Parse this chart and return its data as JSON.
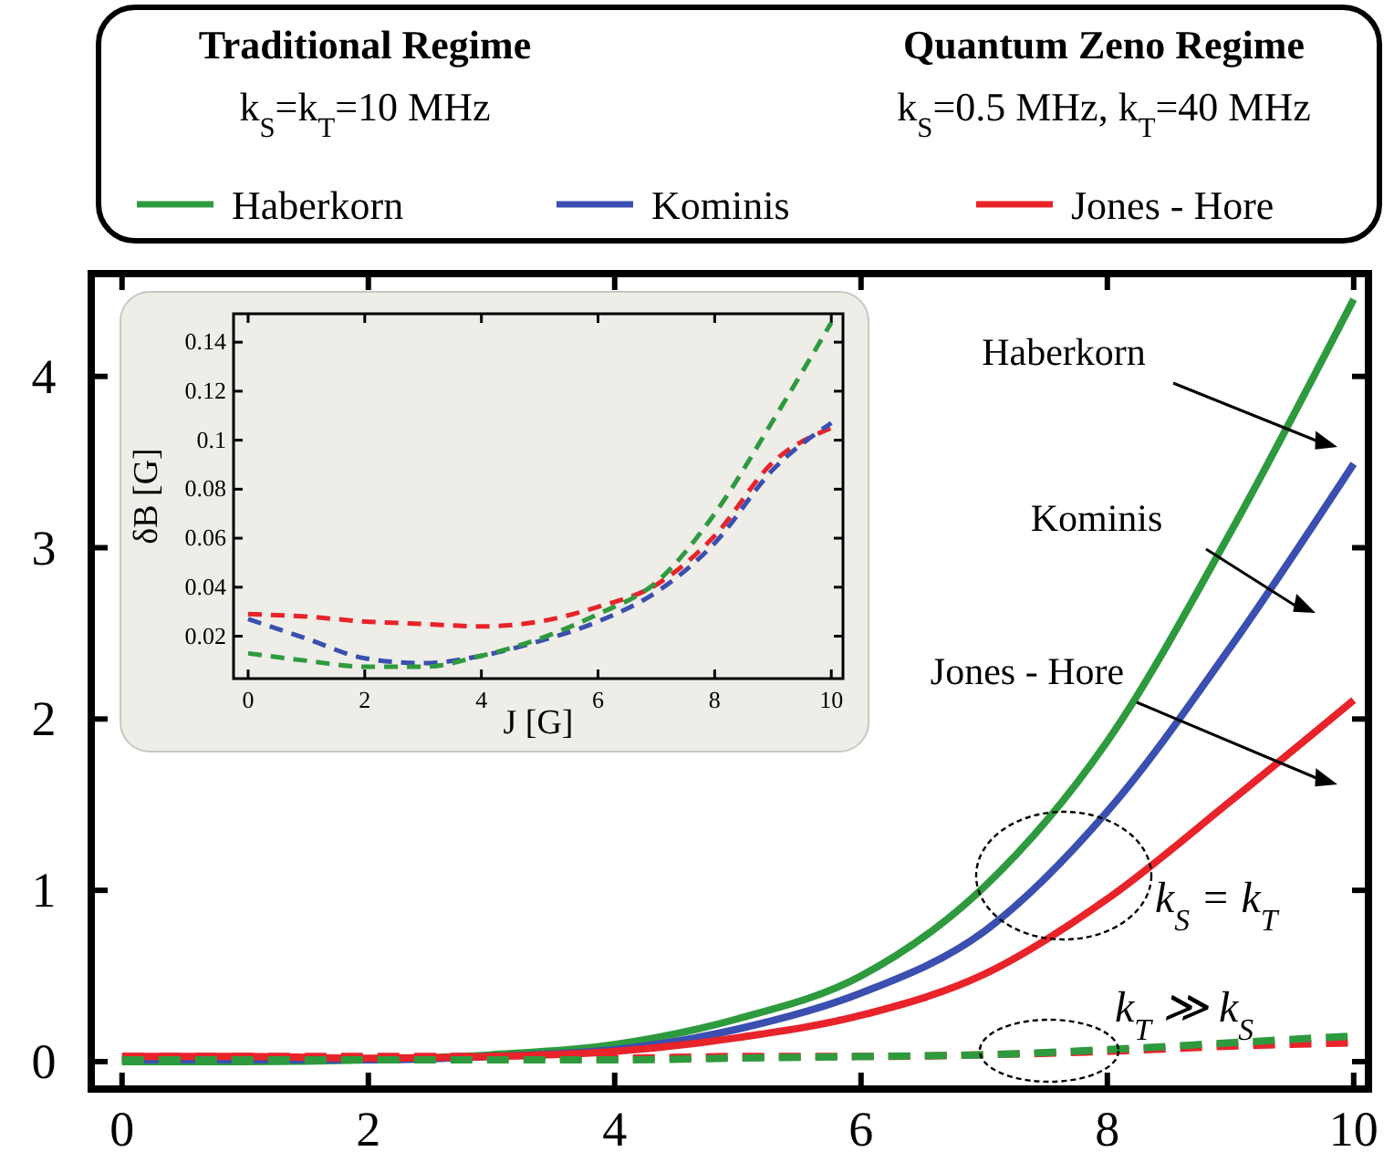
{
  "chart_data": [
    {
      "type": "line",
      "x": [
        0,
        1,
        2,
        3,
        4,
        5,
        6,
        7,
        8,
        9,
        10
      ],
      "xlim": [
        -0.25,
        10.12
      ],
      "ylim": [
        -0.16,
        4.6
      ],
      "xticks": [
        0,
        2,
        4,
        6,
        8,
        10
      ],
      "yticks": [
        0,
        1,
        2,
        3,
        4
      ],
      "legend": "top",
      "series": [
        {
          "name": "Haberkorn",
          "color": "#2e9a3e",
          "line_style": "solid",
          "values": [
            0,
            0,
            0.01,
            0.04,
            0.1,
            0.25,
            0.5,
            1.02,
            1.87,
            3.09,
            4.45
          ]
        },
        {
          "name": "Kominis",
          "color": "#3a4fb0",
          "line_style": "solid",
          "values": [
            0.01,
            0.01,
            0.01,
            0.03,
            0.07,
            0.19,
            0.4,
            0.76,
            1.46,
            2.42,
            3.49
          ]
        },
        {
          "name": "Jones - Hore",
          "color": "#e8232a",
          "line_style": "solid",
          "values": [
            0.03,
            0.03,
            0.02,
            0.03,
            0.06,
            0.14,
            0.27,
            0.51,
            0.95,
            1.52,
            2.11
          ]
        },
        {
          "color": "#e8232a",
          "line_style": "dashed",
          "values": [
            0.03,
            0.03,
            0.03,
            0.03,
            0.02,
            0.03,
            0.03,
            0.04,
            0.06,
            0.09,
            0.11
          ]
        },
        {
          "color": "#2e9a3e",
          "line_style": "dashed",
          "values": [
            0.01,
            0.01,
            0.01,
            0.01,
            0.01,
            0.02,
            0.03,
            0.04,
            0.07,
            0.11,
            0.15
          ]
        }
      ],
      "annotations": [
        "Traditional Regime",
        "k$_{S}$=k$_{T}$=10 MHz",
        "Quantum Zeno Regime",
        "k$_{S}$=0.5 MHz, k$_{T}$=40 MHz",
        "Haberkorn",
        "Kominis",
        "Jones - Hore",
        "k$_{S}$ = k$_{T}$",
        "k$_{T}$ ≫ k$_{S}$"
      ]
    },
    {
      "type": "line",
      "x": [
        0,
        1,
        2,
        3,
        4,
        5,
        6,
        7,
        8,
        9,
        10
      ],
      "xlim": [
        -0.25,
        10.2
      ],
      "ylim": [
        0.0027,
        0.1516
      ],
      "xticks": [
        0,
        2,
        4,
        6,
        8,
        10
      ],
      "yticks": [
        0.02,
        0.04,
        0.06,
        0.08,
        0.1,
        0.12,
        0.14
      ],
      "xlabel": "J [G]",
      "ylabel": "δB [G]",
      "series": [
        {
          "color": "#e8232a",
          "line_style": "dashed",
          "values": [
            0.029,
            0.028,
            0.026,
            0.025,
            0.024,
            0.026,
            0.032,
            0.041,
            0.061,
            0.091,
            0.105
          ]
        },
        {
          "color": "#3a4fb0",
          "line_style": "dashed",
          "values": [
            0.027,
            0.019,
            0.011,
            0.009,
            0.012,
            0.018,
            0.026,
            0.038,
            0.058,
            0.088,
            0.107
          ]
        },
        {
          "color": "#2e9a3e",
          "line_style": "dashed",
          "values": [
            0.013,
            0.01,
            0.0075,
            0.0075,
            0.012,
            0.019,
            0.029,
            0.042,
            0.07,
            0.108,
            0.148
          ]
        }
      ]
    }
  ]
}
